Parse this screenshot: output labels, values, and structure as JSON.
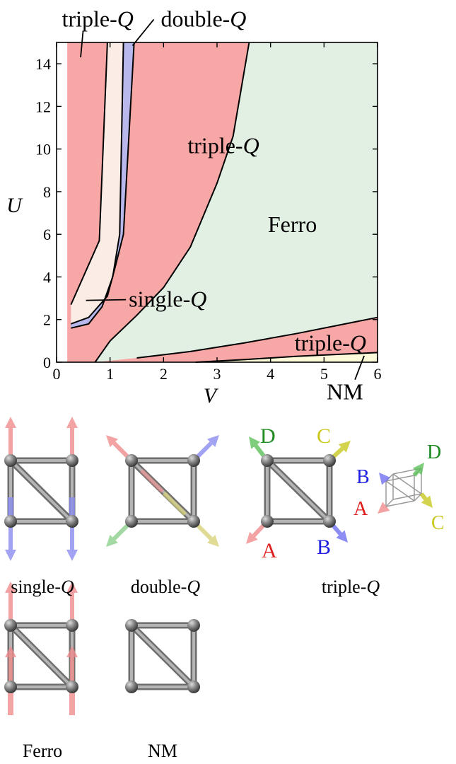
{
  "chart_data": {
    "type": "area",
    "xlabel": "V",
    "ylabel": "U",
    "xlim": [
      0,
      6
    ],
    "ylim": [
      0,
      15
    ],
    "xticks": [
      "0",
      "1",
      "2",
      "3",
      "4",
      "5",
      "6"
    ],
    "yticks": [
      "0",
      "2",
      "4",
      "6",
      "8",
      "10",
      "12",
      "14"
    ],
    "grid": false,
    "colors": {
      "triple-Q": "#f7a7a5",
      "single-Q": "#fcece6",
      "double-Q": "#b8b8ec",
      "Ferro": "#e2f0e4",
      "NM": "#fdfbda",
      "boundary": "#000000"
    },
    "regions": [
      {
        "name": "triple-Q",
        "color_key": "triple-Q"
      },
      {
        "name": "single-Q",
        "color_key": "single-Q"
      },
      {
        "name": "double-Q",
        "color_key": "double-Q"
      },
      {
        "name": "Ferro",
        "color_key": "Ferro"
      },
      {
        "name": "NM",
        "color_key": "NM"
      }
    ],
    "boundaries": [
      {
        "name": "tripleQ-singleQ",
        "points": [
          [
            0.27,
            2.7
          ],
          [
            0.8,
            5.7
          ],
          [
            0.95,
            15
          ]
        ]
      },
      {
        "name": "singleQ-doubleQ-lower",
        "points": [
          [
            0.27,
            1.6
          ],
          [
            0.6,
            1.8
          ],
          [
            0.85,
            2.6
          ],
          [
            1.05,
            4.0
          ],
          [
            1.18,
            6.0
          ],
          [
            1.25,
            15
          ]
        ]
      },
      {
        "name": "singleQ-doubleQ-upper",
        "points": [
          [
            0.27,
            1.8
          ],
          [
            0.6,
            2.1
          ],
          [
            0.95,
            3.1
          ],
          [
            1.1,
            4.5
          ],
          [
            1.25,
            6.0
          ],
          [
            1.45,
            15
          ]
        ]
      },
      {
        "name": "tripleQ-Ferro",
        "points": [
          [
            0.72,
            0.0
          ],
          [
            1.0,
            1.0
          ],
          [
            1.5,
            2.2
          ],
          [
            2.0,
            3.5
          ],
          [
            2.5,
            5.4
          ],
          [
            3.0,
            8.4
          ],
          [
            3.3,
            10.6
          ],
          [
            3.6,
            15
          ]
        ]
      },
      {
        "name": "Ferro-tripleQ-low",
        "points": [
          [
            1.5,
            0.2
          ],
          [
            2.5,
            0.5
          ],
          [
            3.5,
            0.9
          ],
          [
            4.5,
            1.35
          ],
          [
            6.0,
            2.1
          ]
        ]
      },
      {
        "name": "tripleQ-NM",
        "points": [
          [
            2.6,
            0.0
          ],
          [
            3.5,
            0.12
          ],
          [
            4.5,
            0.28
          ],
          [
            6.0,
            0.45
          ]
        ]
      }
    ],
    "annotations": [
      {
        "text": "triple-",
        "italic": "Q",
        "anchor": [
          0.1,
          15.75
        ],
        "callout_to": [
          0.45,
          14.3
        ]
      },
      {
        "text": "double-",
        "italic": "Q",
        "anchor": [
          1.95,
          15.75
        ],
        "callout_to": [
          1.42,
          14.85
        ]
      },
      {
        "text": "triple-",
        "italic": "Q",
        "anchor": [
          2.45,
          9.8
        ]
      },
      {
        "text": "Ferro",
        "italic": "",
        "anchor": [
          3.95,
          6.1
        ]
      },
      {
        "text": "single-",
        "italic": "Q",
        "anchor": [
          1.35,
          2.6
        ],
        "callout_to": [
          0.55,
          2.9
        ]
      },
      {
        "text": "triple-",
        "italic": "Q",
        "anchor": [
          4.45,
          0.55
        ]
      },
      {
        "text": "NM",
        "italic": "",
        "anchor": [
          5.05,
          -1.75
        ],
        "callout_to": [
          5.75,
          0.3
        ]
      }
    ]
  },
  "structures": {
    "single_q": {
      "label_text": "single-",
      "label_italic": "Q"
    },
    "double_q": {
      "label_text": "double-",
      "label_italic": "Q"
    },
    "triple_q": {
      "label_text": "triple-",
      "label_italic": "Q",
      "sub_labels": [
        "A",
        "B",
        "C",
        "D"
      ],
      "sub_label_colors": {
        "A": "#e02020",
        "B": "#2020e0",
        "C": "#c8c820",
        "D": "#1f8a1f"
      }
    },
    "ferro": {
      "label": "Ferro"
    },
    "nm": {
      "label": "NM"
    }
  }
}
